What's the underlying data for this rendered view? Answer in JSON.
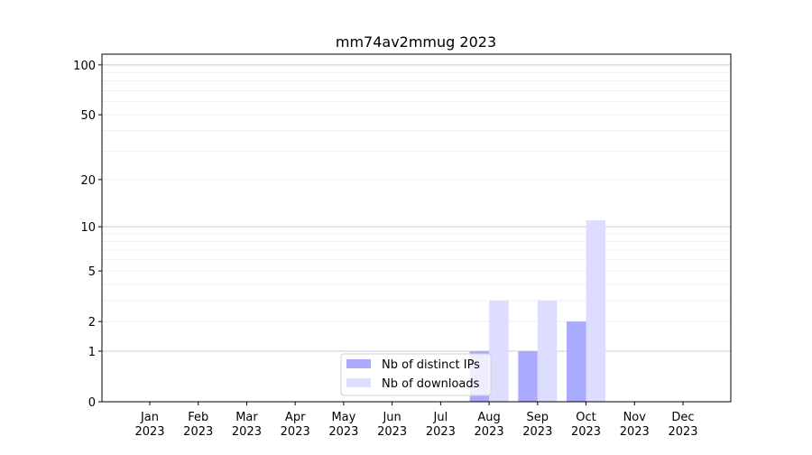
{
  "chart_data": {
    "type": "bar",
    "title": "mm74av2mmug 2023",
    "xlabel": "",
    "ylabel": "",
    "yscale": "symlog",
    "ylim": [
      0,
      116
    ],
    "yticks": [
      0,
      1,
      2,
      5,
      10,
      20,
      50,
      100
    ],
    "grid": true,
    "legend_position": "lower-center",
    "categories": [
      "Jan\n2023",
      "Feb\n2023",
      "Mar\n2023",
      "Apr\n2023",
      "May\n2023",
      "Jun\n2023",
      "Jul\n2023",
      "Aug\n2023",
      "Sep\n2023",
      "Oct\n2023",
      "Nov\n2023",
      "Dec\n2023"
    ],
    "series": [
      {
        "name": "Nb of distinct IPs",
        "color": "#aaaaff",
        "values": [
          0,
          0,
          0,
          0,
          0,
          0,
          0,
          1,
          1,
          2,
          0,
          0
        ]
      },
      {
        "name": "Nb of downloads",
        "color": "#ddddff",
        "values": [
          0,
          0,
          0,
          0,
          0,
          0,
          0,
          3,
          3,
          11,
          0,
          0
        ]
      }
    ]
  }
}
